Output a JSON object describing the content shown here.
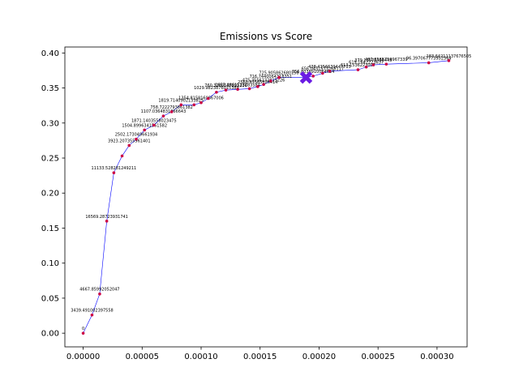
{
  "chart_data": {
    "type": "line",
    "title": "Emissions vs Score",
    "xlabel": "",
    "ylabel": "",
    "xlim": [
      -1.55e-05,
      0.0003255
    ],
    "ylim": [
      -0.0195,
      0.4085
    ],
    "xticks": [
      0,
      5e-05,
      0.0001,
      0.00015,
      0.0002,
      0.00025,
      0.0003
    ],
    "xtick_labels": [
      "0.00000",
      "0.00005",
      "0.00010",
      "0.00015",
      "0.00020",
      "0.00025",
      "0.00030"
    ],
    "yticks": [
      0,
      0.05,
      0.1,
      0.15,
      0.2,
      0.25,
      0.3,
      0.35,
      0.4
    ],
    "ytick_labels": [
      "0.00",
      "0.05",
      "0.10",
      "0.15",
      "0.20",
      "0.25",
      "0.30",
      "0.35",
      "0.40"
    ],
    "grid": false,
    "line_color": "#0000ff",
    "marker_color": "#cc0044",
    "highlight_color": "#6a1be3",
    "series": [
      {
        "points": [
          {
            "x": 0.0,
            "y": 0.0,
            "label": "0"
          },
          {
            "x": 7.5e-06,
            "y": 0.026,
            "label": "3439.491002397558"
          },
          {
            "x": 1.4e-05,
            "y": 0.056,
            "label": "4667.85992052047"
          },
          {
            "x": 2e-05,
            "y": 0.16,
            "label": "16569.28723931741"
          },
          {
            "x": 2.6e-05,
            "y": 0.229,
            "label": "11133.528281249211"
          },
          {
            "x": 3.3e-05,
            "y": 0.253,
            "label": ""
          },
          {
            "x": 3.9e-05,
            "y": 0.268,
            "label": "3923.207355961401"
          },
          {
            "x": 4.5e-05,
            "y": 0.277,
            "label": "2502.173049661934"
          },
          {
            "x": 5.2e-05,
            "y": 0.29,
            "label": "1504.8996341561582"
          },
          {
            "x": 6e-05,
            "y": 0.297,
            "label": "1871.1403558023475"
          },
          {
            "x": 6.8e-05,
            "y": 0.31,
            "label": "1107.0364831066643"
          },
          {
            "x": 7.5e-05,
            "y": 0.316,
            "label": "758.7222793861382"
          },
          {
            "x": 8.3e-05,
            "y": 0.326,
            "label": "1819.7140902133825"
          },
          {
            "x": 9.4e-05,
            "y": 0.326,
            "label": ""
          },
          {
            "x": 0.0001,
            "y": 0.329,
            "label": "1354.8158160667006"
          },
          {
            "x": 0.000106,
            "y": 0.335,
            "label": ""
          },
          {
            "x": 0.000113,
            "y": 0.344,
            "label": "1029.9823876015389"
          },
          {
            "x": 0.000121,
            "y": 0.347,
            "label": "760.3280547291236"
          },
          {
            "x": 0.000131,
            "y": 0.348,
            "label": "1657.0861533283584"
          },
          {
            "x": 0.000141,
            "y": 0.349,
            "label": ""
          },
          {
            "x": 0.000148,
            "y": 0.352,
            "label": "2568.87585826414"
          },
          {
            "x": 0.000153,
            "y": 0.355,
            "label": "475.3556232819226"
          },
          {
            "x": 0.000159,
            "y": 0.36,
            "label": "716.7440064318351"
          },
          {
            "x": 0.000166,
            "y": 0.365,
            "label": "725.905862680158"
          },
          {
            "x": 0.00019,
            "y": 0.365,
            "label": ""
          },
          {
            "x": 0.000195,
            "y": 0.367,
            "label": "356.8038910064654"
          },
          {
            "x": 0.000203,
            "y": 0.371,
            "label": "656.0431573268117"
          },
          {
            "x": 0.000209,
            "y": 0.374,
            "label": "438.4356639447715"
          },
          {
            "x": 0.000233,
            "y": 0.376,
            "label": "613.1536223007"
          },
          {
            "x": 0.00024,
            "y": 0.38,
            "label": "619.1642223637"
          },
          {
            "x": 0.000246,
            "y": 0.383,
            "label": "379.13575456445"
          },
          {
            "x": 0.000257,
            "y": 0.384,
            "label": "487.3565759967339"
          },
          {
            "x": 0.000293,
            "y": 0.386,
            "label": "96.397067773952364"
          },
          {
            "x": 0.00031,
            "y": 0.389,
            "label": "183.64211137676505"
          }
        ],
        "highlight": {
          "x": 0.000189,
          "y": 0.365
        }
      }
    ]
  }
}
